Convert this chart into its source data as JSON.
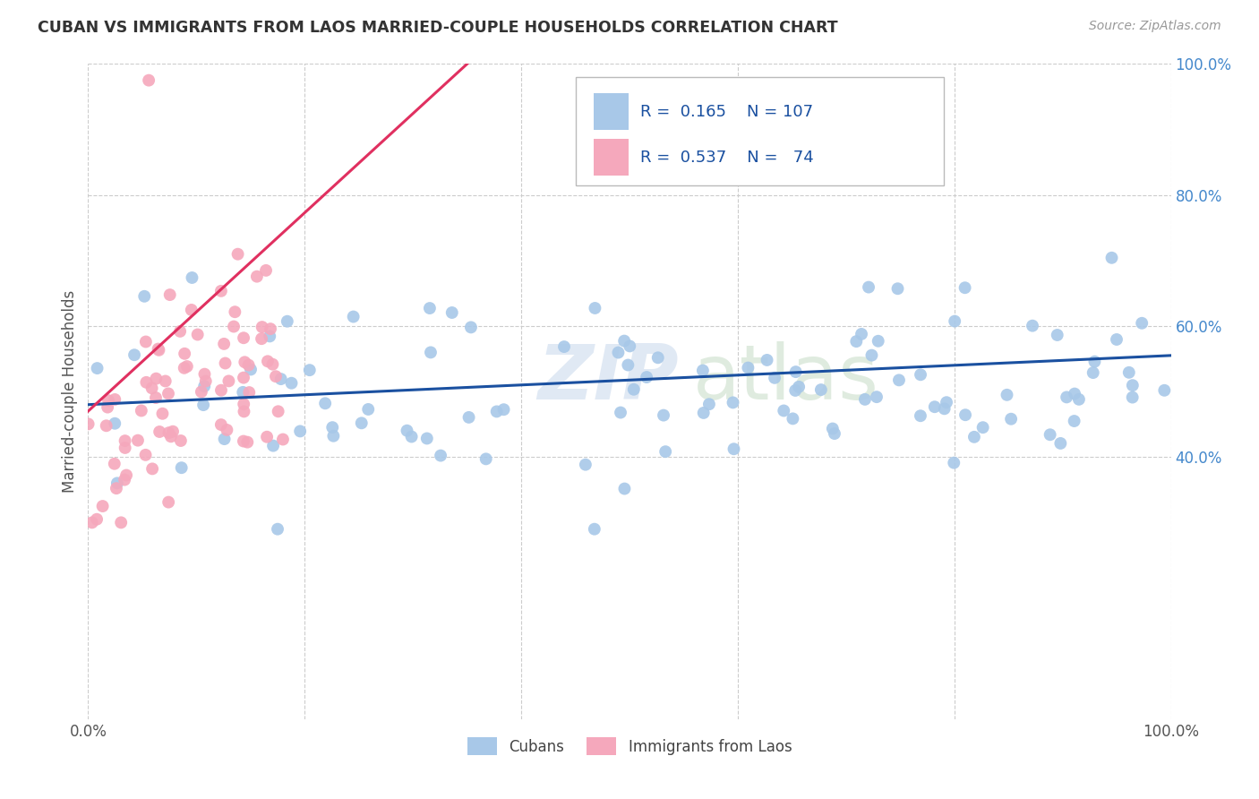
{
  "title": "CUBAN VS IMMIGRANTS FROM LAOS MARRIED-COUPLE HOUSEHOLDS CORRELATION CHART",
  "source": "Source: ZipAtlas.com",
  "ylabel": "Married-couple Households",
  "legend_cubans": "Cubans",
  "legend_laos": "Immigrants from Laos",
  "R_cubans": 0.165,
  "N_cubans": 107,
  "R_laos": 0.537,
  "N_laos": 74,
  "color_cubans": "#a8c8e8",
  "color_laos": "#f5a8bc",
  "line_color_cubans": "#1a50a0",
  "line_color_laos": "#e03060",
  "background_color": "#ffffff",
  "grid_color": "#cccccc",
  "title_color": "#333333",
  "source_color": "#999999",
  "right_axis_color": "#4488cc",
  "legend_text_color": "#1a50a0",
  "ymin": 0.0,
  "ymax": 1.0,
  "xmin": 0.0,
  "xmax": 1.0,
  "ytick_positions": [
    0.4,
    0.6,
    0.8,
    1.0
  ],
  "ytick_labels": [
    "40.0%",
    "60.0%",
    "80.0%",
    "100.0%"
  ],
  "cub_line_x0": 0.0,
  "cub_line_y0": 0.48,
  "cub_line_x1": 1.0,
  "cub_line_y1": 0.555,
  "laos_line_x0": 0.0,
  "laos_line_y0": 0.47,
  "laos_line_x1": 0.35,
  "laos_line_y1": 1.0
}
